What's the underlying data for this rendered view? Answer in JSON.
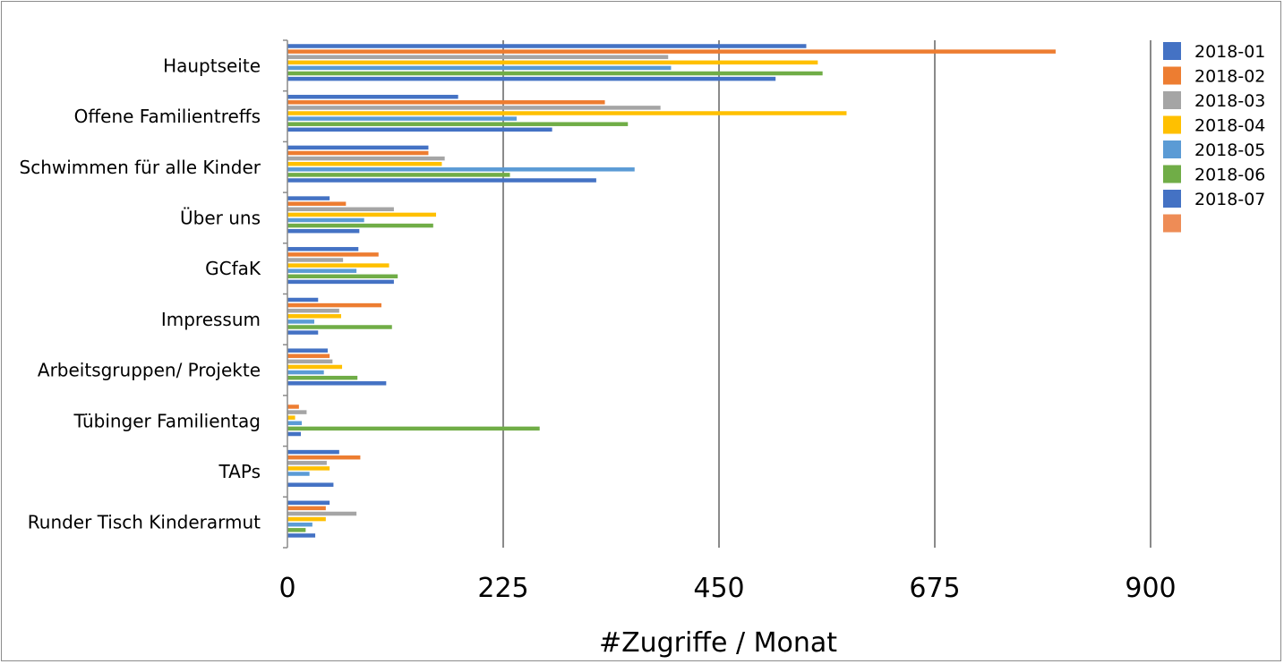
{
  "chart_data": {
    "type": "bar",
    "orientation": "horizontal",
    "title": "",
    "xlabel": "#Zugriffe / Monat",
    "ylabel": "",
    "xlim": [
      0,
      900
    ],
    "xticks": [
      "0",
      "225",
      "450",
      "675",
      "900"
    ],
    "grid": "vertical",
    "legend_position": "right",
    "categories": [
      "Hauptseite",
      "Offene Familientreffs",
      "Schwimmen für alle Kinder",
      "Über uns",
      "GCfaK",
      "Impressum",
      "Arbeitsgruppen/ Projekte",
      "Tübinger Familientag",
      "TAPs",
      "Runder Tisch Kinderarmut"
    ],
    "series": [
      {
        "name": "2018-01",
        "color": "#4472C4",
        "values": [
          541,
          178,
          147,
          44,
          74,
          32,
          42,
          0,
          54,
          44
        ]
      },
      {
        "name": "2018-02",
        "color": "#ED7D31",
        "values": [
          801,
          331,
          147,
          61,
          95,
          98,
          44,
          12,
          76,
          40
        ]
      },
      {
        "name": "2018-03",
        "color": "#A5A5A5",
        "values": [
          397,
          389,
          164,
          111,
          58,
          54,
          47,
          20,
          41,
          72
        ]
      },
      {
        "name": "2018-04",
        "color": "#FFC000",
        "values": [
          553,
          583,
          161,
          155,
          106,
          56,
          57,
          8,
          44,
          40
        ]
      },
      {
        "name": "2018-05",
        "color": "#5B9BD5",
        "values": [
          400,
          239,
          362,
          80,
          72,
          28,
          38,
          15,
          23,
          26
        ]
      },
      {
        "name": "2018-06",
        "color": "#70AD47",
        "values": [
          558,
          355,
          232,
          152,
          115,
          109,
          73,
          263,
          0,
          19
        ]
      },
      {
        "name": "2018-07",
        "color": "#4472C4",
        "values": [
          509,
          276,
          322,
          75,
          111,
          32,
          103,
          14,
          48,
          29
        ]
      },
      {
        "name": "",
        "color": "#EE8C56",
        "values": [
          0,
          0,
          0,
          0,
          0,
          0,
          0,
          0,
          0,
          0
        ]
      }
    ]
  }
}
